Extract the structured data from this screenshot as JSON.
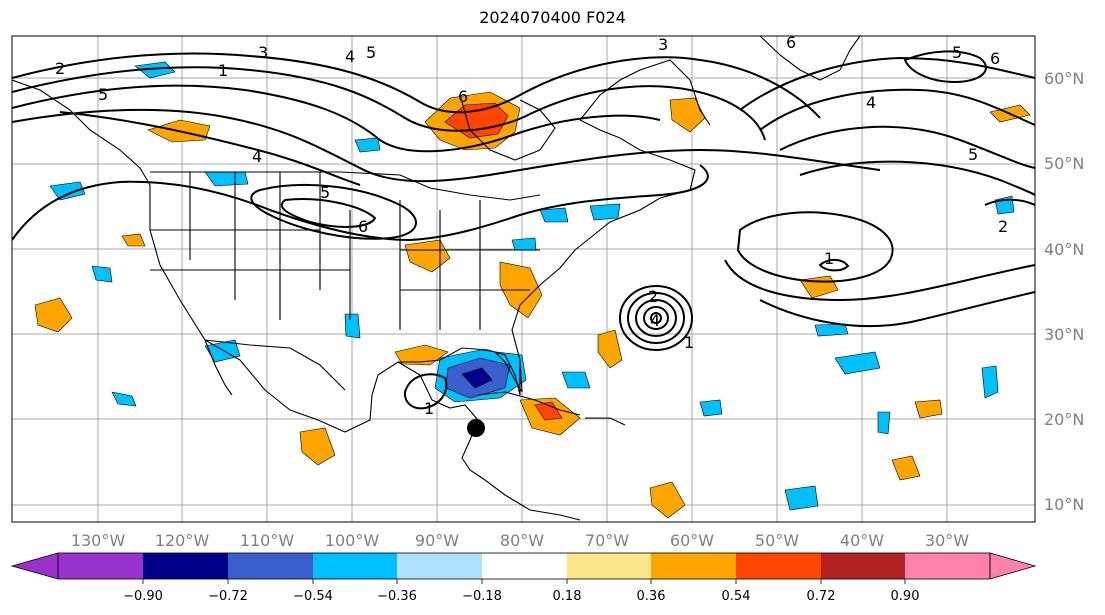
{
  "title": "2024070400 F024",
  "map": {
    "lat_labels": [
      "60°N",
      "50°N",
      "40°N",
      "30°N",
      "20°N",
      "10°N"
    ],
    "lon_labels": [
      "130°W",
      "120°W",
      "110°W",
      "100°W",
      "90°W",
      "80°W",
      "70°W",
      "60°W",
      "50°W",
      "40°W",
      "30°W"
    ],
    "contour_labels": [
      "2",
      "5",
      "1",
      "3",
      "4",
      "5",
      "6",
      "6",
      "5",
      "6",
      "4",
      "5",
      "6",
      "3",
      "4",
      "5",
      "2",
      "1",
      "2",
      "4",
      "1",
      "1"
    ],
    "fill_colors": {
      "neg_090": "#8a2be2",
      "neg_072": "#00008b",
      "neg_054": "#3a5fcd",
      "neg_036": "#00bfff",
      "neg_018": "#b0e0ff",
      "pos_018": "#fde58a",
      "pos_036": "#ffa500",
      "pos_054": "#ff4500",
      "pos_072": "#b22222",
      "pos_090": "#ff82ab"
    }
  },
  "colorbar": {
    "tick_labels": [
      "−0.90",
      "−0.72",
      "−0.54",
      "−0.36",
      "−0.18",
      "0.18",
      "0.36",
      "0.54",
      "0.72",
      "0.90"
    ],
    "colors": [
      "#9932cc",
      "#00008b",
      "#3a5fcd",
      "#00bfff",
      "#b0e0ff",
      "#ffffff",
      "#fde58a",
      "#ffa500",
      "#ff4500",
      "#b22222",
      "#ff82ab"
    ]
  }
}
